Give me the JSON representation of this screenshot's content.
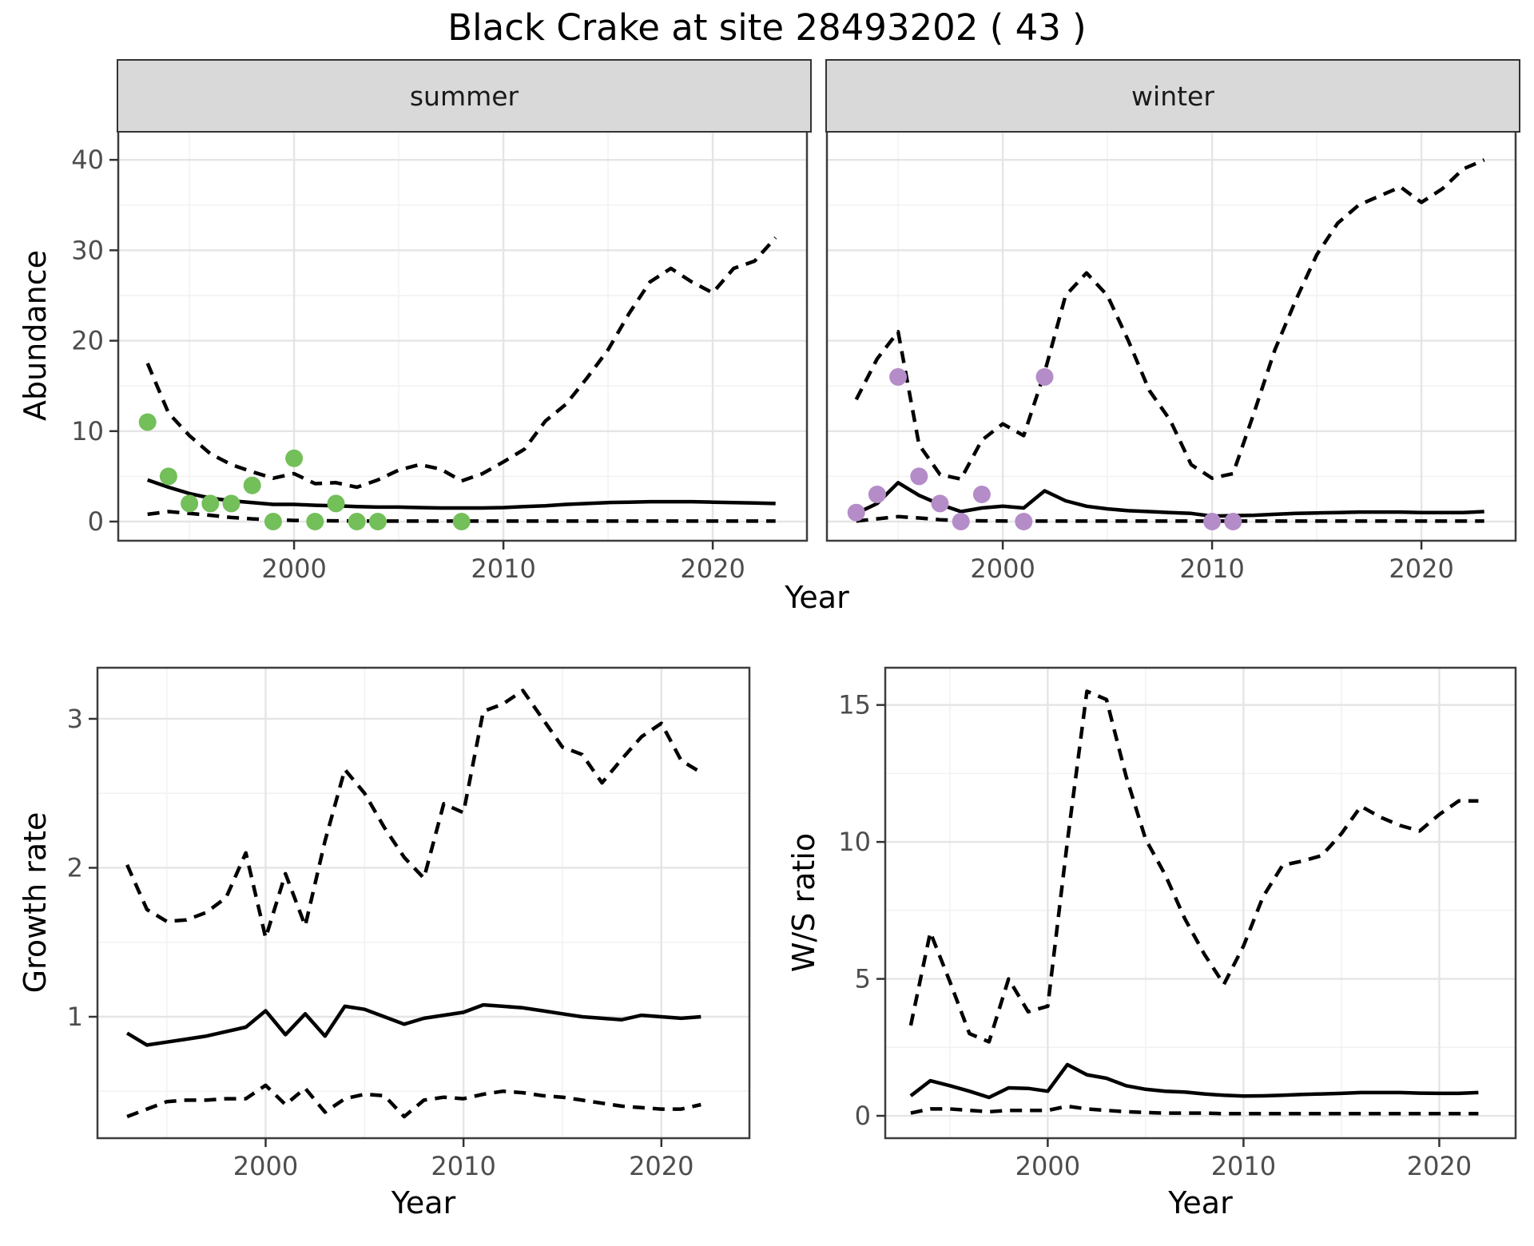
{
  "title": "Black Crake at site 28493202 ( 43 )",
  "labels": {
    "year": "Year",
    "abundance": "Abundance",
    "growth_rate": "Growth rate",
    "ws_ratio": "W/S ratio"
  },
  "facets": {
    "summer": "summer",
    "winter": "winter"
  },
  "colors": {
    "summer_points": "#73bf59",
    "winter_points": "#b48cc8",
    "line": "#000000",
    "grid_major": "#e5e5e5",
    "grid_minor": "#f2f2f2",
    "strip_bg": "#d9d9d9",
    "panel_border": "#3d3d3d",
    "tick_text": "#4d4d4d"
  },
  "chart_data": [
    {
      "id": "abundance_summer",
      "type": "line",
      "facet": "summer",
      "xlabel": "Year",
      "ylabel": "Abundance",
      "xlim": [
        1991.6,
        2024.5
      ],
      "ylim": [
        -2.12,
        43.37
      ],
      "x_ticks": {
        "major": [
          2000,
          2010,
          2020
        ],
        "minor": [
          1995,
          2005,
          2015
        ]
      },
      "y_ticks": {
        "major": [
          0,
          10,
          20,
          30,
          40
        ],
        "minor": [
          5,
          15,
          25,
          35
        ]
      },
      "x": [
        1993,
        1994,
        1995,
        1996,
        1997,
        1998,
        1999,
        2000,
        2001,
        2002,
        2003,
        2004,
        2005,
        2006,
        2007,
        2008,
        2009,
        2010,
        2011,
        2012,
        2013,
        2014,
        2015,
        2016,
        2017,
        2018,
        2019,
        2020,
        2021,
        2022,
        2023
      ],
      "series": [
        {
          "name": "upper_ci",
          "style": "dashed",
          "values": [
            17.5,
            12,
            9.5,
            7.5,
            6.3,
            5.5,
            4.8,
            5.3,
            4.2,
            4.3,
            3.8,
            4.6,
            5.7,
            6.3,
            5.8,
            4.5,
            5.3,
            6.6,
            8,
            11.1,
            13,
            15.9,
            19,
            23,
            26.5,
            28,
            26.5,
            25.3,
            28,
            28.8,
            31.4
          ]
        },
        {
          "name": "median",
          "style": "solid",
          "values": [
            4.6,
            3.8,
            3.1,
            2.6,
            2.3,
            2.1,
            1.9,
            1.9,
            1.8,
            1.75,
            1.65,
            1.6,
            1.6,
            1.55,
            1.5,
            1.5,
            1.5,
            1.55,
            1.65,
            1.75,
            1.9,
            2,
            2.1,
            2.15,
            2.2,
            2.2,
            2.2,
            2.15,
            2.1,
            2.05,
            2
          ]
        },
        {
          "name": "lower_ci",
          "style": "dashed",
          "values": [
            0.8,
            1.1,
            0.9,
            0.7,
            0.45,
            0.3,
            0.2,
            0.12,
            0.1,
            0.08,
            0.06,
            0.05,
            0.05,
            0.05,
            0.05,
            0.05,
            0.05,
            0.05,
            0.05,
            0.05,
            0.05,
            0.05,
            0.05,
            0.05,
            0.05,
            0.05,
            0.05,
            0.05,
            0.05,
            0.05,
            0.05
          ]
        },
        {
          "name": "observations",
          "style": "points",
          "color": "#73bf59",
          "x": [
            1993,
            1994,
            1995,
            1996,
            1997,
            1998,
            1999,
            2000,
            2001,
            2002,
            2003,
            2004,
            2008
          ],
          "values": [
            11,
            5,
            2,
            2,
            2,
            4,
            0,
            7,
            0,
            2,
            0,
            0,
            0
          ]
        }
      ]
    },
    {
      "id": "abundance_winter",
      "type": "line",
      "facet": "winter",
      "xlabel": "Year",
      "ylabel": "Abundance",
      "xlim": [
        1991.6,
        2024.5
      ],
      "ylim": [
        -2.12,
        43.37
      ],
      "x_ticks": {
        "major": [
          2000,
          2010,
          2020
        ],
        "minor": [
          1995,
          2005,
          2015
        ]
      },
      "y_ticks": {
        "major": [
          0,
          10,
          20,
          30,
          40
        ],
        "minor": [
          5,
          15,
          25,
          35
        ]
      },
      "x": [
        1993,
        1994,
        1995,
        1996,
        1997,
        1998,
        1999,
        2000,
        2001,
        2002,
        2003,
        2004,
        2005,
        2006,
        2007,
        2008,
        2009,
        2010,
        2011,
        2012,
        2013,
        2014,
        2015,
        2016,
        2017,
        2018,
        2019,
        2020,
        2021,
        2022,
        2023
      ],
      "series": [
        {
          "name": "upper_ci",
          "style": "dashed",
          "values": [
            13.5,
            18,
            21,
            8.5,
            5.2,
            4.7,
            9,
            10.8,
            9.5,
            16.5,
            25,
            27.5,
            25,
            20,
            14.5,
            11.2,
            6.3,
            4.8,
            5.3,
            12,
            19,
            24.5,
            29.5,
            33,
            35,
            36,
            37,
            35.3,
            36.8,
            39,
            40
          ]
        },
        {
          "name": "median",
          "style": "solid",
          "values": [
            0.9,
            2,
            4.3,
            2.9,
            1.9,
            1.1,
            1.5,
            1.7,
            1.5,
            3.4,
            2.3,
            1.7,
            1.4,
            1.2,
            1.1,
            1,
            0.9,
            0.6,
            0.65,
            0.7,
            0.8,
            0.9,
            0.95,
            1,
            1.05,
            1.05,
            1.05,
            1,
            1,
            1,
            1.1
          ]
        },
        {
          "name": "lower_ci",
          "style": "dashed",
          "values": [
            0.05,
            0.3,
            0.55,
            0.4,
            0.2,
            0.1,
            0.08,
            0.06,
            0.05,
            0.05,
            0.05,
            0.05,
            0.05,
            0.05,
            0.05,
            0.05,
            0.05,
            0.05,
            0.05,
            0.05,
            0.05,
            0.05,
            0.05,
            0.05,
            0.05,
            0.05,
            0.05,
            0.05,
            0.05,
            0.05,
            0.05
          ]
        },
        {
          "name": "observations",
          "style": "points",
          "color": "#b48cc8",
          "x": [
            1993,
            1994,
            1995,
            1996,
            1997,
            1998,
            1999,
            2001,
            2002,
            2010,
            2011
          ],
          "values": [
            1,
            3,
            16,
            5,
            2,
            0,
            3,
            0,
            16,
            0,
            0
          ]
        }
      ]
    },
    {
      "id": "growth_rate",
      "type": "line",
      "facet": "",
      "xlabel": "Year",
      "ylabel": "Growth rate",
      "xlim": [
        1991.5,
        2024.45
      ],
      "ylim": [
        0.185,
        3.343
      ],
      "x_ticks": {
        "major": [
          2000,
          2010,
          2020
        ],
        "minor": [
          1995,
          2005,
          2015
        ]
      },
      "y_ticks": {
        "major": [
          1,
          2,
          3
        ],
        "minor": [
          0.5,
          1.5,
          2.5
        ]
      },
      "x": [
        1993,
        1994,
        1995,
        1996,
        1997,
        1998,
        1999,
        2000,
        2001,
        2002,
        2003,
        2004,
        2005,
        2006,
        2007,
        2008,
        2009,
        2010,
        2011,
        2012,
        2013,
        2014,
        2015,
        2016,
        2017,
        2018,
        2019,
        2020,
        2021,
        2022
      ],
      "series": [
        {
          "name": "upper_ci",
          "style": "dashed",
          "values": [
            2.02,
            1.72,
            1.64,
            1.65,
            1.7,
            1.8,
            2.1,
            1.53,
            1.96,
            1.61,
            2.18,
            2.66,
            2.5,
            2.27,
            2.07,
            1.93,
            2.43,
            2.37,
            3.05,
            3.1,
            3.19,
            3,
            2.81,
            2.76,
            2.57,
            2.73,
            2.88,
            2.97,
            2.72,
            2.64
          ]
        },
        {
          "name": "median",
          "style": "solid",
          "values": [
            0.89,
            0.81,
            0.83,
            0.85,
            0.87,
            0.9,
            0.93,
            1.04,
            0.88,
            1.02,
            0.87,
            1.07,
            1.05,
            1,
            0.95,
            0.99,
            1.01,
            1.03,
            1.08,
            1.07,
            1.06,
            1.04,
            1.02,
            1,
            0.99,
            0.98,
            1.01,
            1,
            0.99,
            1
          ]
        },
        {
          "name": "lower_ci",
          "style": "dashed",
          "values": [
            0.33,
            0.38,
            0.43,
            0.44,
            0.44,
            0.45,
            0.45,
            0.54,
            0.41,
            0.52,
            0.36,
            0.45,
            0.48,
            0.47,
            0.33,
            0.44,
            0.46,
            0.45,
            0.48,
            0.5,
            0.49,
            0.47,
            0.46,
            0.44,
            0.42,
            0.4,
            0.39,
            0.38,
            0.38,
            0.41
          ]
        }
      ]
    },
    {
      "id": "ws_ratio",
      "type": "line",
      "facet": "",
      "xlabel": "Year",
      "ylabel": "W/S ratio",
      "xlim": [
        1991.7,
        2023.9
      ],
      "ylim": [
        -0.816,
        16.36
      ],
      "x_ticks": {
        "major": [
          2000,
          2010,
          2020
        ],
        "minor": [
          1995,
          2005,
          2015
        ]
      },
      "y_ticks": {
        "major": [
          0,
          5,
          10,
          15
        ],
        "minor": [
          2.5,
          7.5,
          12.5
        ]
      },
      "x": [
        1993,
        1994,
        1995,
        1996,
        1997,
        1998,
        1999,
        2000,
        2001,
        2002,
        2003,
        2004,
        2005,
        2006,
        2007,
        2008,
        2009,
        2010,
        2011,
        2012,
        2013,
        2014,
        2015,
        2016,
        2017,
        2018,
        2019,
        2020,
        2021,
        2022
      ],
      "series": [
        {
          "name": "upper_ci",
          "style": "dashed",
          "values": [
            3.3,
            6.7,
            4.9,
            3,
            2.7,
            5,
            3.8,
            4,
            10,
            15.5,
            15.2,
            12.4,
            10.1,
            8.8,
            7.2,
            5.9,
            4.8,
            6.2,
            8,
            9.15,
            9.3,
            9.5,
            10.3,
            11.3,
            10.9,
            10.6,
            10.4,
            11,
            11.5,
            11.5
          ]
        },
        {
          "name": "median",
          "style": "solid",
          "values": [
            0.73,
            1.28,
            1.1,
            0.9,
            0.67,
            1.02,
            1,
            0.9,
            1.87,
            1.5,
            1.37,
            1.1,
            0.97,
            0.9,
            0.87,
            0.8,
            0.75,
            0.72,
            0.73,
            0.75,
            0.78,
            0.8,
            0.82,
            0.85,
            0.85,
            0.85,
            0.83,
            0.82,
            0.82,
            0.85
          ]
        },
        {
          "name": "lower_ci",
          "style": "dashed",
          "values": [
            0.1,
            0.25,
            0.25,
            0.2,
            0.15,
            0.2,
            0.2,
            0.2,
            0.35,
            0.25,
            0.2,
            0.15,
            0.12,
            0.1,
            0.1,
            0.1,
            0.08,
            0.08,
            0.08,
            0.08,
            0.08,
            0.08,
            0.08,
            0.08,
            0.08,
            0.08,
            0.08,
            0.08,
            0.08,
            0.08
          ]
        }
      ]
    }
  ]
}
